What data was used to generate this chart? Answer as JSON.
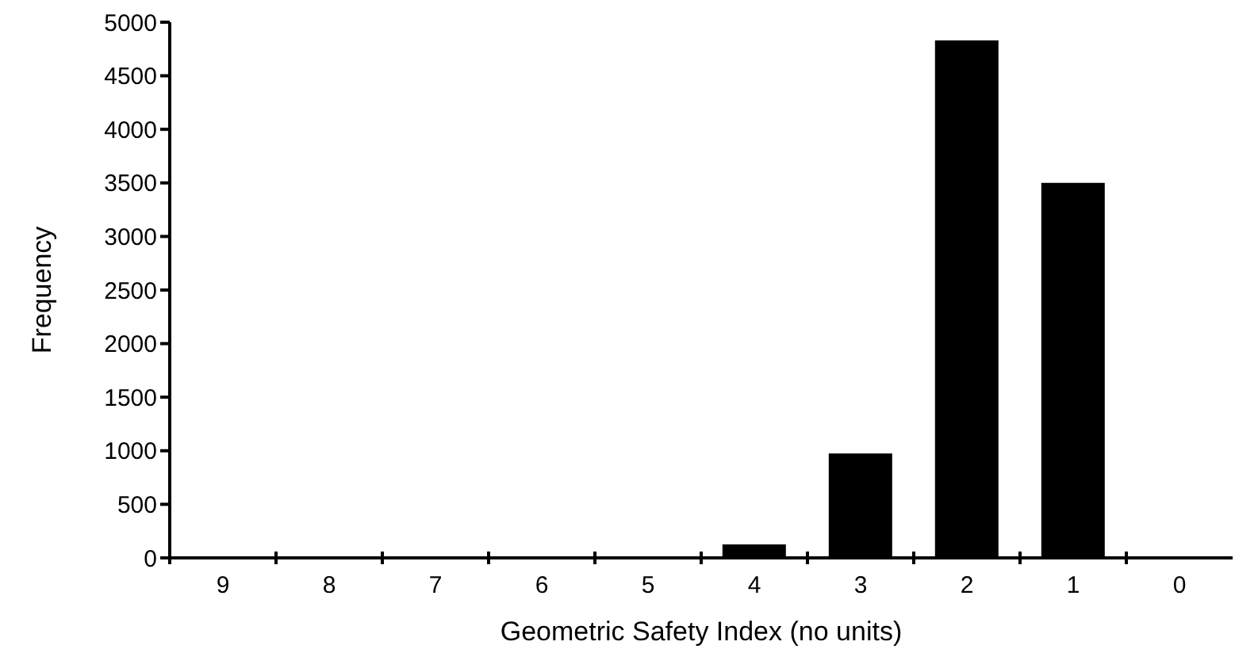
{
  "chart_data": {
    "type": "bar",
    "xlabel": "Geometric Safety Index (no units)",
    "ylabel": "Frequency",
    "categories": [
      "9",
      "8",
      "7",
      "6",
      "5",
      "4",
      "3",
      "2",
      "1",
      "0"
    ],
    "values": [
      0,
      0,
      0,
      0,
      0,
      125,
      975,
      4830,
      3500,
      0
    ],
    "color": "#000000",
    "ylim": [
      0,
      5000
    ],
    "yticks": [
      0,
      500,
      1000,
      1500,
      2000,
      2500,
      3000,
      3500,
      4000,
      4500,
      5000
    ],
    "grid": false,
    "legend": false
  }
}
